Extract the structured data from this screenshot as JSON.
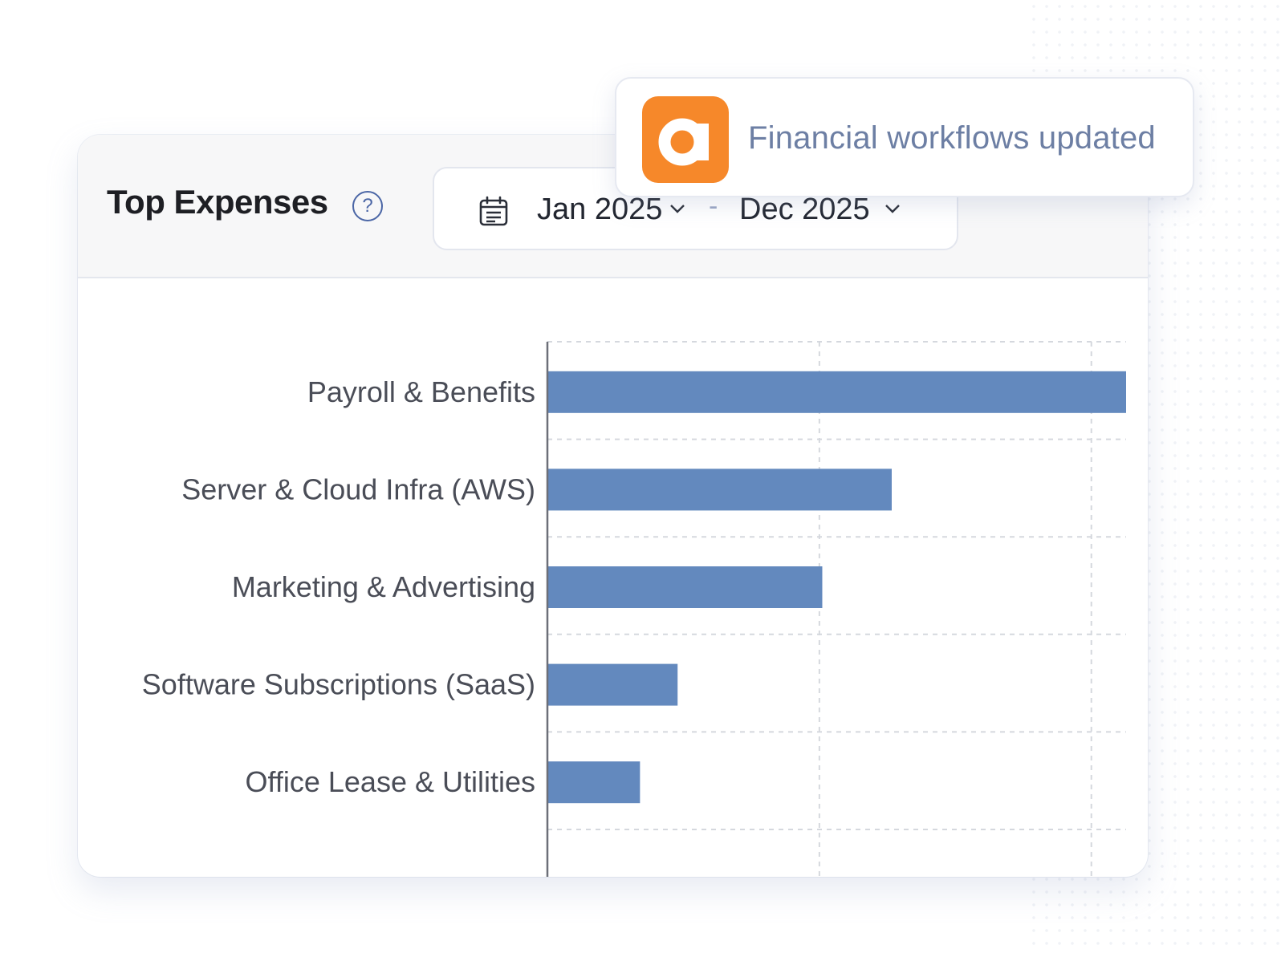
{
  "notification": {
    "icon": "app-logo-a-icon",
    "text": "Financial workflows updated",
    "logo_color": "#f6882a"
  },
  "header": {
    "title": "Top Expenses",
    "help_icon": "question-circle-icon"
  },
  "date_range": {
    "icon": "calendar-icon",
    "from": "Jan 2025",
    "separator": "-",
    "to": "Dec 2025"
  },
  "chart_data": {
    "type": "bar",
    "orientation": "horizontal",
    "categories": [
      "Payroll & Benefits",
      "Server & Cloud Infra (AWS)",
      "Marketing & Advertising",
      "Software Subscriptions (SaaS)",
      "Office Lease & Utilities"
    ],
    "values": [
      100,
      59.5,
      47.5,
      22.5,
      16
    ],
    "xlim": [
      0,
      100
    ],
    "grid": true,
    "bar_color": "#6389be"
  }
}
